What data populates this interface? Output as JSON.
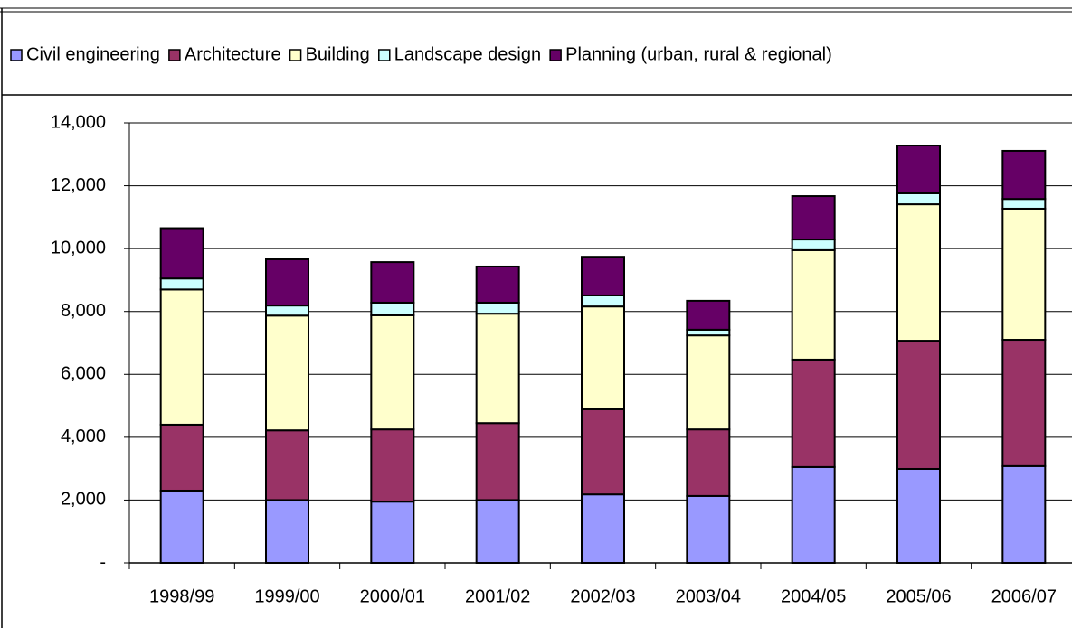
{
  "chart_data": {
    "type": "stacked_bar",
    "categories": [
      "1998/99",
      "1999/00",
      "2000/01",
      "2001/02",
      "2002/03",
      "2003/04",
      "2004/05",
      "2005/06",
      "2006/07"
    ],
    "series": [
      {
        "name": "Civil engineering",
        "color": "#9999ff",
        "values": [
          2300,
          2000,
          1950,
          2000,
          2180,
          2130,
          3050,
          2990,
          3080
        ]
      },
      {
        "name": "Architecture",
        "color": "#993366",
        "values": [
          2100,
          2220,
          2300,
          2450,
          2710,
          2120,
          3420,
          4080,
          4020
        ]
      },
      {
        "name": "Building",
        "color": "#ffffcc",
        "values": [
          4300,
          3650,
          3630,
          3480,
          3270,
          2990,
          3480,
          4340,
          4170
        ]
      },
      {
        "name": "Landscape design",
        "color": "#ccffff",
        "values": [
          350,
          320,
          400,
          350,
          350,
          180,
          340,
          350,
          310
        ]
      },
      {
        "name": "Planning (urban, rural & regional)",
        "color": "#660066",
        "values": [
          1600,
          1470,
          1290,
          1150,
          1230,
          920,
          1380,
          1520,
          1530
        ]
      }
    ],
    "ylim": [
      0,
      14000
    ],
    "yticks": [
      {
        "value": 0,
        "label": "-"
      },
      {
        "value": 2000,
        "label": "2,000"
      },
      {
        "value": 4000,
        "label": "4,000"
      },
      {
        "value": 6000,
        "label": "6,000"
      },
      {
        "value": 8000,
        "label": "8,000"
      },
      {
        "value": 10000,
        "label": "10,000"
      },
      {
        "value": 12000,
        "label": "12,000"
      },
      {
        "value": 14000,
        "label": "14,000"
      }
    ],
    "grid": true
  }
}
